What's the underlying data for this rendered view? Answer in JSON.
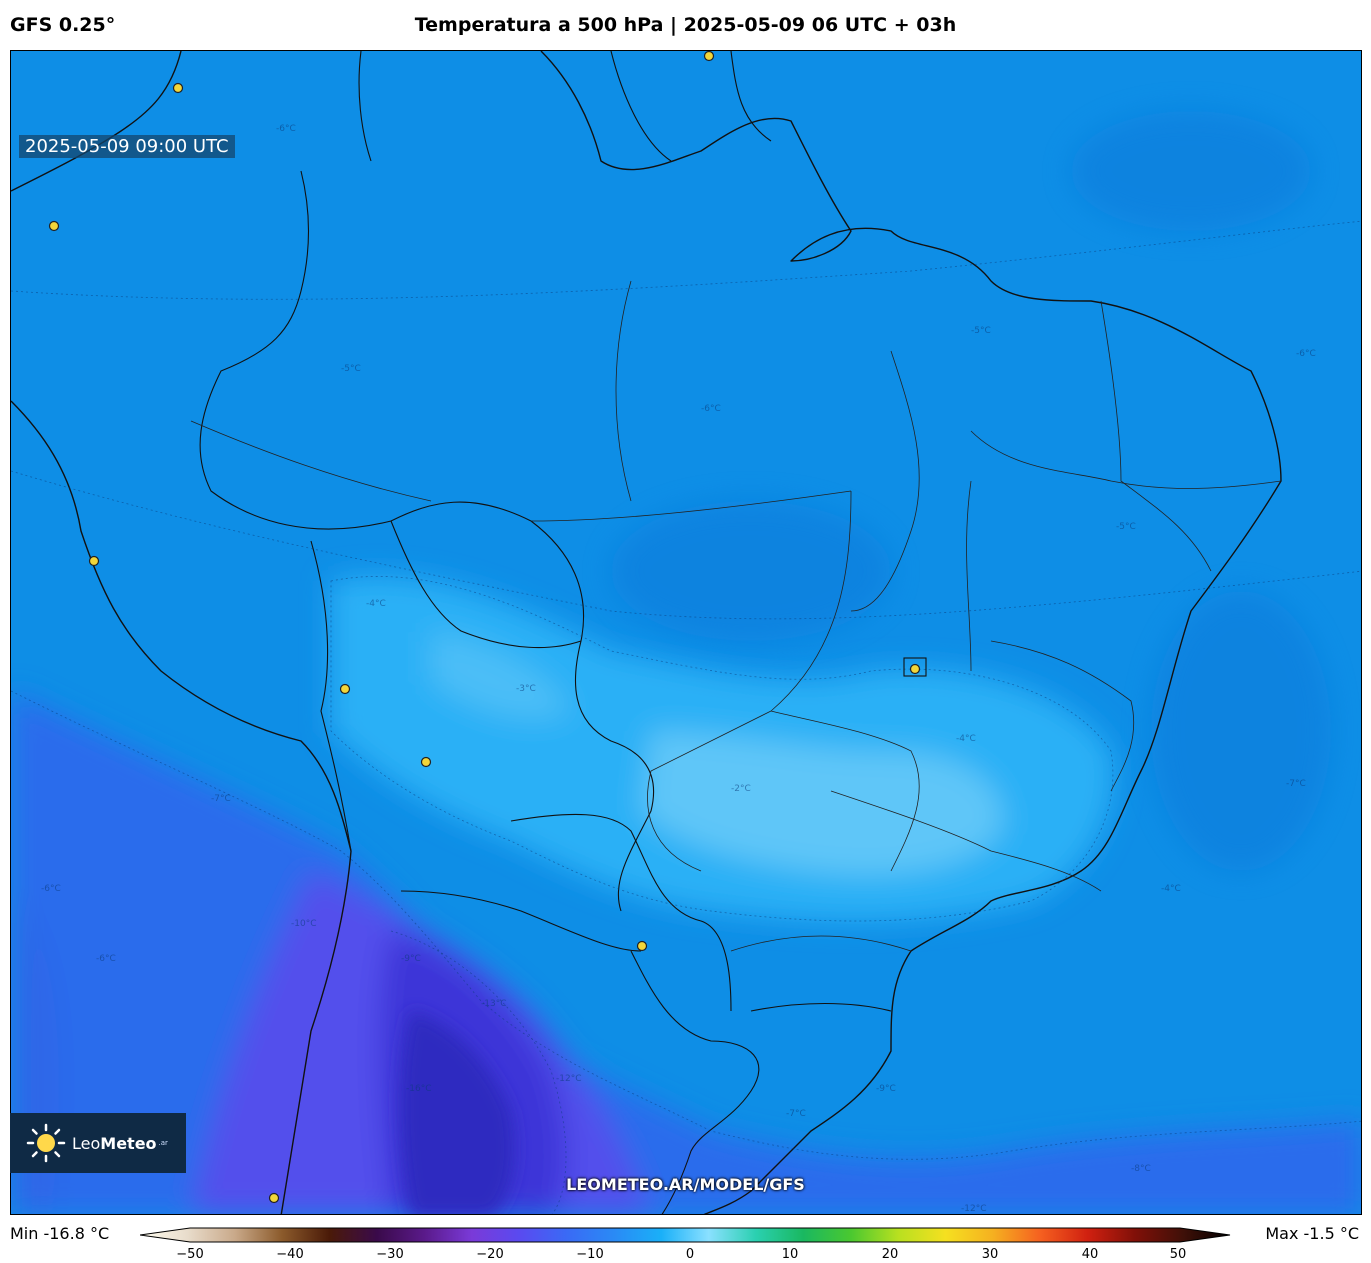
{
  "header": {
    "model": "GFS 0.25°",
    "title": "Temperatura a 500 hPa | 2025-05-09 06 UTC + 03h"
  },
  "map": {
    "valid_time": "2025-05-09 09:00 UTC",
    "watermark": "LEOMETEO.AR/MODEL/GFS",
    "logo": {
      "part1": "Leo",
      "part2": "Meteo",
      "suffix": ".ar"
    },
    "contour_labels": [
      "-6°C",
      "-5°C",
      "-6°C",
      "-4°C",
      "-3°C",
      "-2°C",
      "-5°C",
      "-4°C",
      "-7°C",
      "-6°C",
      "-10°C",
      "-9°C",
      "-13°C",
      "-16°C",
      "-12°C",
      "-9°C",
      "-8°C",
      "-12°C",
      "-6°C",
      "-7°C",
      "-6°C",
      "-5°C",
      "-4°C",
      "-7°C"
    ]
  },
  "colorbar": {
    "min_label": "Min -16.8 °C",
    "max_label": "Max -1.5 °C",
    "ticks": [
      "−50",
      "−40",
      "−30",
      "−20",
      "−10",
      "0",
      "10",
      "20",
      "30",
      "40",
      "50"
    ],
    "range": [
      -50,
      50
    ],
    "colors": [
      "#fffdf0",
      "#e8dccb",
      "#c9a98a",
      "#8b5a2b",
      "#4a1a08",
      "#3a0a4a",
      "#5a1a8a",
      "#7a3ad8",
      "#5a4af0",
      "#3a6af5",
      "#2a8af5",
      "#1ab0f8",
      "#8ae0ff",
      "#2ad0b0",
      "#1ab860",
      "#4ac830",
      "#b8e020",
      "#f5e020",
      "#f5b020",
      "#f56020",
      "#d02010",
      "#801008",
      "#401008",
      "#000000"
    ]
  },
  "units": "°C"
}
